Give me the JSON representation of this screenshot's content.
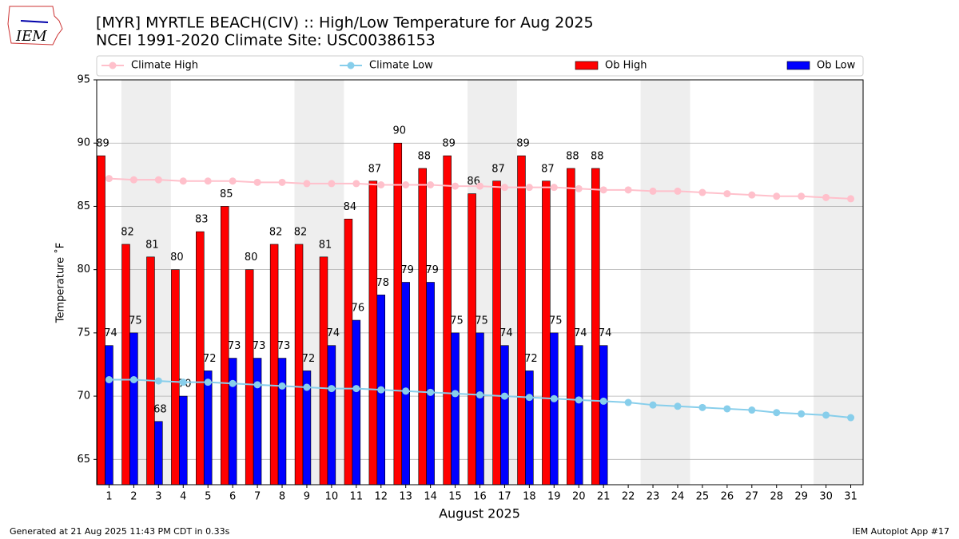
{
  "chart_data": {
    "type": "bar_line",
    "logo_text": "IEM",
    "title": "[MYR] MYRTLE BEACH(CIV) :: High/Low Temperature for Aug 2025",
    "subtitle": "NCEI 1991-2020 Climate Site: USC00386153",
    "xlabel": "August 2025",
    "ylabel": "Temperature ˚F",
    "footer_left": "Generated at 21 Aug 2025 11:43 PM CDT in 0.33s",
    "footer_right": "IEM Autoplot App #17",
    "x": [
      1,
      2,
      3,
      4,
      5,
      6,
      7,
      8,
      9,
      10,
      11,
      12,
      13,
      14,
      15,
      16,
      17,
      18,
      19,
      20,
      21,
      22,
      23,
      24,
      25,
      26,
      27,
      28,
      29,
      30,
      31
    ],
    "xlim": [
      0.5,
      31.5
    ],
    "xticks": [
      1,
      2,
      3,
      4,
      5,
      6,
      7,
      8,
      9,
      10,
      11,
      12,
      13,
      14,
      15,
      16,
      17,
      18,
      19,
      20,
      21,
      22,
      23,
      24,
      25,
      26,
      27,
      28,
      29,
      30,
      31
    ],
    "ylim": [
      63,
      95
    ],
    "yticks": [
      65,
      70,
      75,
      80,
      85,
      90,
      95
    ],
    "grid": true,
    "shade_ranges": [
      [
        1.5,
        3.5
      ],
      [
        8.5,
        10.5
      ],
      [
        15.5,
        17.5
      ],
      [
        22.5,
        24.5
      ],
      [
        29.5,
        31.5
      ]
    ],
    "shade_color": "#eeeeee",
    "series": [
      {
        "name": "Climate High",
        "type": "line",
        "color": "pink",
        "values": [
          87.2,
          87.1,
          87.1,
          87.0,
          87.0,
          87.0,
          86.9,
          86.9,
          86.8,
          86.8,
          86.8,
          86.7,
          86.7,
          86.7,
          86.6,
          86.6,
          86.5,
          86.5,
          86.5,
          86.4,
          86.3,
          86.3,
          86.2,
          86.2,
          86.1,
          86.0,
          85.9,
          85.8,
          85.8,
          85.7,
          85.6
        ]
      },
      {
        "name": "Climate Low",
        "type": "line",
        "color": "skyblue",
        "values": [
          71.3,
          71.3,
          71.2,
          71.1,
          71.1,
          71.0,
          70.9,
          70.8,
          70.7,
          70.6,
          70.6,
          70.5,
          70.4,
          70.3,
          70.2,
          70.1,
          70.0,
          69.9,
          69.8,
          69.7,
          69.6,
          69.5,
          69.3,
          69.2,
          69.1,
          69.0,
          68.9,
          68.7,
          68.6,
          68.5,
          68.3
        ]
      },
      {
        "name": "Ob High",
        "type": "bar",
        "color": "red",
        "values": [
          89,
          82,
          81,
          80,
          83,
          85,
          80,
          82,
          82,
          81,
          84,
          87,
          90,
          88,
          89,
          86,
          87,
          89,
          87,
          88,
          88,
          null,
          null,
          null,
          null,
          null,
          null,
          null,
          null,
          null,
          null
        ]
      },
      {
        "name": "Ob Low",
        "type": "bar",
        "color": "blue",
        "values": [
          74,
          75,
          68,
          70,
          72,
          73,
          73,
          73,
          72,
          74,
          76,
          78,
          79,
          79,
          75,
          75,
          74,
          72,
          75,
          74,
          74,
          null,
          null,
          null,
          null,
          null,
          null,
          null,
          null,
          null,
          null
        ]
      }
    ]
  }
}
